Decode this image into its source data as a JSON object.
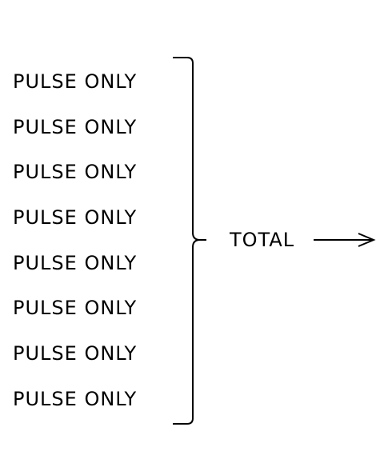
{
  "inputs": [
    {
      "label": "PULSE ONLY"
    },
    {
      "label": "PULSE ONLY"
    },
    {
      "label": "PULSE ONLY"
    },
    {
      "label": "PULSE ONLY"
    },
    {
      "label": "PULSE ONLY"
    },
    {
      "label": "PULSE ONLY"
    },
    {
      "label": "PULSE ONLY"
    },
    {
      "label": "PULSE ONLY"
    }
  ],
  "output": {
    "label": "TOTAL"
  },
  "colors": {
    "ink": "#000000",
    "background": "#ffffff"
  }
}
